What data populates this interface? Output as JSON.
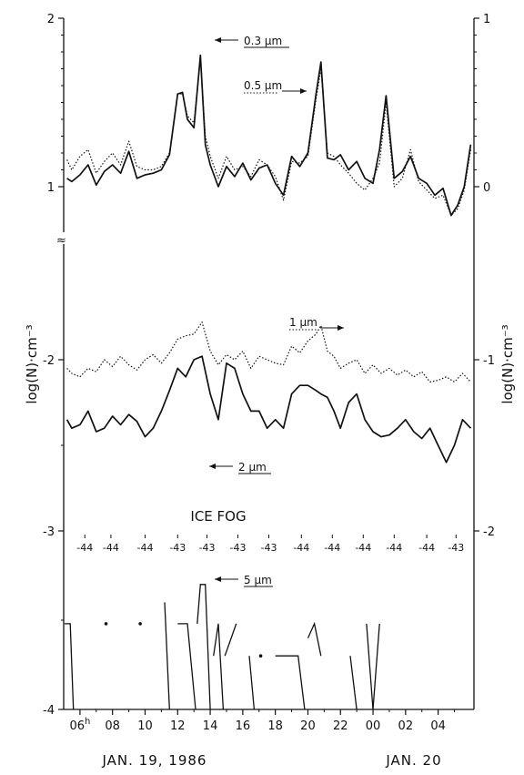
{
  "chart_data": {
    "type": "line",
    "title": "",
    "ylabel_left": "log(N)·cm⁻³",
    "ylabel_right": "log(N)·cm⁻³",
    "x_range_hours": [
      5.0,
      30.2
    ],
    "x_ticks": [
      "06",
      "08",
      "10",
      "12",
      "14",
      "16",
      "18",
      "20",
      "22",
      "00",
      "02",
      "04"
    ],
    "x_tick_superscript": "h",
    "date_labels": [
      "JAN. 19, 1986",
      "JAN. 20"
    ],
    "y_ticks_left": [
      "2",
      "1",
      "-2",
      "-3",
      "-4"
    ],
    "y_ticks_right": [
      "1",
      "0",
      "-1",
      "-2"
    ],
    "axis_break_left": "≈",
    "upper_panel": {
      "ylim": [
        0.45,
        2.0
      ],
      "series": [
        {
          "name": "0.3 µm",
          "style": "solid",
          "x": [
            5.2,
            5.5,
            6.0,
            6.5,
            7.0,
            7.5,
            8.0,
            8.5,
            9.0,
            9.5,
            10.0,
            10.5,
            11.0,
            11.5,
            12.0,
            12.3,
            12.6,
            13.0,
            13.4,
            13.7,
            14.0,
            14.5,
            15.0,
            15.5,
            16.0,
            16.5,
            17.0,
            17.5,
            18.0,
            18.5,
            19.0,
            19.5,
            20.0,
            20.5,
            20.8,
            21.2,
            21.6,
            22.0,
            22.5,
            23.0,
            23.5,
            24.0,
            24.4,
            24.8,
            25.3,
            25.8,
            26.3,
            26.8,
            27.3,
            27.8,
            28.3,
            28.8,
            29.2,
            29.6,
            30.0
          ],
          "y": [
            1.05,
            1.03,
            1.07,
            1.13,
            1.01,
            1.09,
            1.13,
            1.08,
            1.21,
            1.05,
            1.07,
            1.08,
            1.1,
            1.19,
            1.55,
            1.56,
            1.4,
            1.35,
            1.78,
            1.25,
            1.13,
            1.0,
            1.12,
            1.06,
            1.14,
            1.04,
            1.11,
            1.13,
            1.02,
            0.95,
            1.18,
            1.12,
            1.2,
            1.55,
            1.74,
            1.17,
            1.16,
            1.19,
            1.1,
            1.15,
            1.05,
            1.02,
            1.22,
            1.54,
            1.05,
            1.09,
            1.18,
            1.05,
            1.02,
            0.95,
            0.99,
            0.83,
            0.89,
            1.0,
            1.25
          ]
        },
        {
          "name": "0.5 µm",
          "style": "dotted",
          "x": [
            5.2,
            5.5,
            6.0,
            6.5,
            7.0,
            7.5,
            8.0,
            8.5,
            9.0,
            9.5,
            10.0,
            10.5,
            11.0,
            11.5,
            12.0,
            12.3,
            12.6,
            13.0,
            13.4,
            13.7,
            14.0,
            14.5,
            15.0,
            15.5,
            16.0,
            16.5,
            17.0,
            17.5,
            18.0,
            18.5,
            19.0,
            19.5,
            20.0,
            20.5,
            20.8,
            21.2,
            21.6,
            22.0,
            22.5,
            23.0,
            23.5,
            24.0,
            24.4,
            24.8,
            25.3,
            25.8,
            26.3,
            26.8,
            27.3,
            27.8,
            28.3,
            28.8,
            29.2,
            29.6,
            30.0
          ],
          "y": [
            1.16,
            1.1,
            1.18,
            1.22,
            1.08,
            1.15,
            1.2,
            1.13,
            1.27,
            1.12,
            1.1,
            1.1,
            1.12,
            1.2,
            1.55,
            1.55,
            1.42,
            1.38,
            1.76,
            1.3,
            1.18,
            1.05,
            1.18,
            1.1,
            1.12,
            1.06,
            1.16,
            1.13,
            1.06,
            0.92,
            1.15,
            1.14,
            1.18,
            1.52,
            1.7,
            1.2,
            1.18,
            1.13,
            1.08,
            1.02,
            0.98,
            1.05,
            1.14,
            1.5,
            1.0,
            1.05,
            1.22,
            1.03,
            0.98,
            0.93,
            0.95,
            0.83,
            0.87,
            0.98,
            1.22
          ]
        }
      ]
    },
    "middle_panel": {
      "ylim": [
        -3.0,
        -1.5
      ],
      "series": [
        {
          "name": "1 µm",
          "style": "dotted",
          "x": [
            5.2,
            5.5,
            6.0,
            6.5,
            7.0,
            7.5,
            8.0,
            8.5,
            9.0,
            9.5,
            10.0,
            10.5,
            11.0,
            11.5,
            12.0,
            12.5,
            13.0,
            13.5,
            14.0,
            14.5,
            15.0,
            15.5,
            16.0,
            16.5,
            17.0,
            17.5,
            18.0,
            18.5,
            19.0,
            19.5,
            20.0,
            20.5,
            20.8,
            21.2,
            21.6,
            22.0,
            22.5,
            23.0,
            23.5,
            24.0,
            24.5,
            25.0,
            25.5,
            26.0,
            26.5,
            27.0,
            27.5,
            28.0,
            28.5,
            29.0,
            29.5,
            30.0
          ],
          "y": [
            -2.05,
            -2.08,
            -2.1,
            -2.05,
            -2.07,
            -2.0,
            -2.04,
            -1.98,
            -2.03,
            -2.06,
            -2.0,
            -1.97,
            -2.02,
            -1.96,
            -1.88,
            -1.86,
            -1.85,
            -1.78,
            -1.95,
            -2.03,
            -1.97,
            -2.0,
            -1.95,
            -2.05,
            -1.98,
            -2.0,
            -2.02,
            -2.03,
            -1.92,
            -1.96,
            -1.89,
            -1.85,
            -1.8,
            -1.95,
            -1.98,
            -2.05,
            -2.02,
            -2.0,
            -2.08,
            -2.03,
            -2.08,
            -2.05,
            -2.09,
            -2.06,
            -2.1,
            -2.07,
            -2.13,
            -2.12,
            -2.1,
            -2.13,
            -2.08,
            -2.13
          ]
        },
        {
          "name": "2 µm",
          "style": "solid",
          "x": [
            5.2,
            5.5,
            6.0,
            6.5,
            7.0,
            7.5,
            8.0,
            8.5,
            9.0,
            9.5,
            10.0,
            10.5,
            11.0,
            11.5,
            12.0,
            12.5,
            13.0,
            13.5,
            14.0,
            14.5,
            15.0,
            15.5,
            16.0,
            16.5,
            17.0,
            17.5,
            18.0,
            18.5,
            19.0,
            19.5,
            20.0,
            20.5,
            20.8,
            21.2,
            21.6,
            22.0,
            22.5,
            23.0,
            23.5,
            24.0,
            24.5,
            25.0,
            25.5,
            26.0,
            26.5,
            27.0,
            27.5,
            28.0,
            28.5,
            29.0,
            29.5,
            30.0
          ],
          "y": [
            -2.35,
            -2.4,
            -2.38,
            -2.3,
            -2.42,
            -2.4,
            -2.33,
            -2.38,
            -2.32,
            -2.36,
            -2.45,
            -2.4,
            -2.3,
            -2.18,
            -2.05,
            -2.1,
            -2.0,
            -1.98,
            -2.2,
            -2.35,
            -2.02,
            -2.05,
            -2.2,
            -2.3,
            -2.3,
            -2.4,
            -2.35,
            -2.4,
            -2.2,
            -2.15,
            -2.15,
            -2.18,
            -2.2,
            -2.22,
            -2.3,
            -2.4,
            -2.25,
            -2.2,
            -2.35,
            -2.42,
            -2.45,
            -2.44,
            -2.4,
            -2.35,
            -2.42,
            -2.46,
            -2.4,
            -2.5,
            -2.6,
            -2.5,
            -2.35,
            -2.4
          ]
        }
      ]
    },
    "ice_fog": {
      "label": "ICE FOG",
      "temperatures": [
        "-44",
        "-44",
        "-44",
        "-43",
        "-43",
        "-43",
        "-43",
        "-44",
        "-44",
        "-44",
        "-44",
        "-44",
        "-43"
      ],
      "temp_x": [
        6.3,
        7.9,
        10.0,
        12.0,
        13.8,
        15.7,
        17.6,
        19.6,
        21.5,
        23.4,
        25.3,
        27.3,
        29.1
      ]
    },
    "lower_panel": {
      "ylim": [
        -4.0,
        -3.0
      ],
      "series": [
        {
          "name": "5 µm",
          "style": "solid",
          "segments": [
            [
              [
                5.05,
                -3.52
              ],
              [
                5.4,
                -3.52
              ],
              [
                5.6,
                -4.0
              ]
            ],
            [
              [
                11.2,
                -3.4
              ],
              [
                11.5,
                -4.0
              ]
            ],
            [
              [
                12.0,
                -3.52
              ],
              [
                12.6,
                -3.52
              ],
              [
                13.1,
                -4.0
              ]
            ],
            [
              [
                13.2,
                -3.52
              ],
              [
                13.4,
                -3.3
              ],
              [
                13.7,
                -3.3
              ],
              [
                14.0,
                -4.0
              ]
            ],
            [
              [
                14.2,
                -3.7
              ],
              [
                14.5,
                -3.52
              ],
              [
                14.8,
                -4.0
              ]
            ],
            [
              [
                14.9,
                -3.7
              ],
              [
                15.6,
                -3.52
              ]
            ],
            [
              [
                16.4,
                -3.7
              ],
              [
                16.7,
                -4.0
              ]
            ],
            [
              [
                18.0,
                -3.7
              ],
              [
                19.4,
                -3.7
              ],
              [
                19.8,
                -4.0
              ]
            ],
            [
              [
                20.0,
                -3.6
              ],
              [
                20.4,
                -3.52
              ],
              [
                20.8,
                -3.7
              ]
            ],
            [
              [
                22.6,
                -3.7
              ],
              [
                23.0,
                -4.0
              ]
            ],
            [
              [
                23.6,
                -3.52
              ],
              [
                24.0,
                -4.0
              ]
            ],
            [
              [
                24.0,
                -4.0
              ],
              [
                24.4,
                -3.52
              ]
            ]
          ],
          "points": [
            [
              7.6,
              -3.52
            ],
            [
              9.7,
              -3.52
            ],
            [
              17.1,
              -3.7
            ]
          ]
        }
      ]
    },
    "annotations": {
      "upper_03": "0.3 µm",
      "upper_05": "0.5 µm",
      "mid_1": "1 µm",
      "mid_2": "2 µm",
      "low_5": "5 µm"
    },
    "colors": {
      "ink": "#111111",
      "background": "#ffffff"
    }
  }
}
